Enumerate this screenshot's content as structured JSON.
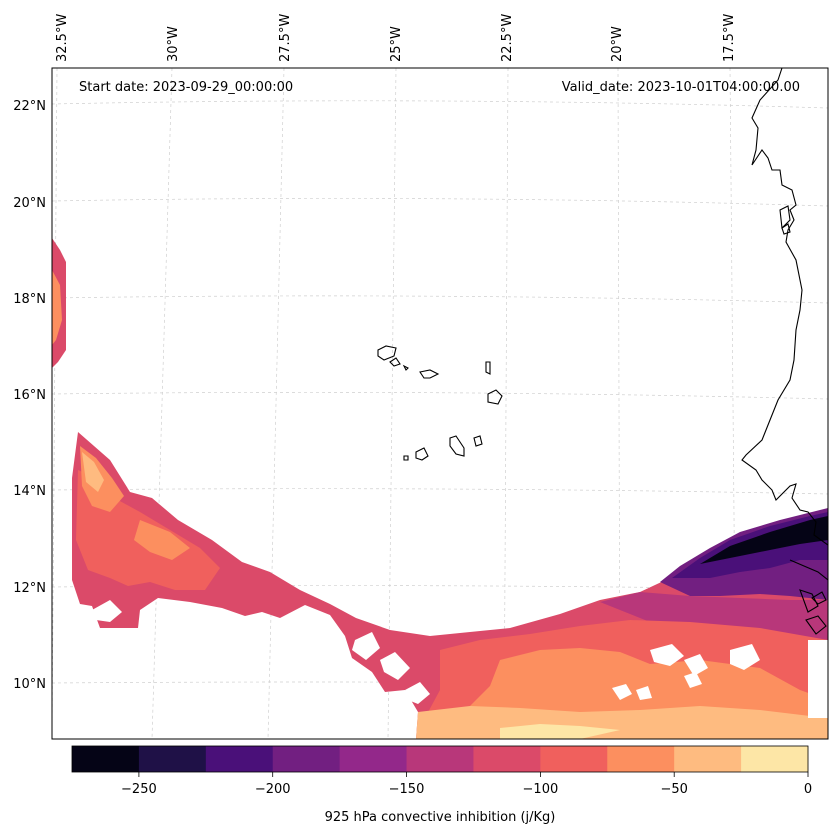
{
  "annotations": {
    "start_date": "Start date: 2023-09-29_00:00:00",
    "valid_date": "Valid_date: 2023-10-01T04:00:00.00"
  },
  "map": {
    "longitude_labels": [
      "32.5°W",
      "30°W",
      "27.5°W",
      "25°W",
      "22.5°W",
      "20°W",
      "17.5°W"
    ],
    "latitude_labels": [
      "22°N",
      "20°N",
      "18°N",
      "16°N",
      "14°N",
      "12°N",
      "10°N"
    ]
  },
  "colorbar": {
    "label": "925 hPa convective inhibition (j/Kg)",
    "tick_labels": [
      "−250",
      "−200",
      "−150",
      "−100",
      "−50",
      "0"
    ],
    "levels": [
      -275,
      -250,
      -225,
      -200,
      -175,
      -150,
      -125,
      -100,
      -75,
      -50,
      -25,
      0
    ],
    "colors": [
      "#050416",
      "#1f1147",
      "#4a1079",
      "#721f81",
      "#93288a",
      "#b8377a",
      "#db4a69",
      "#f0605d",
      "#fc8f5f",
      "#febb80",
      "#fde6a6"
    ]
  },
  "chart_data": {
    "type": "heatmap",
    "variable": "925 hPa convective inhibition",
    "units": "j/Kg",
    "value_range": [
      -275,
      0
    ],
    "longitude_ticks": [
      -32.5,
      -30,
      -27.5,
      -25,
      -22.5,
      -20,
      -17.5
    ],
    "latitude_ticks": [
      22,
      20,
      18,
      16,
      14,
      12,
      10
    ]
  }
}
